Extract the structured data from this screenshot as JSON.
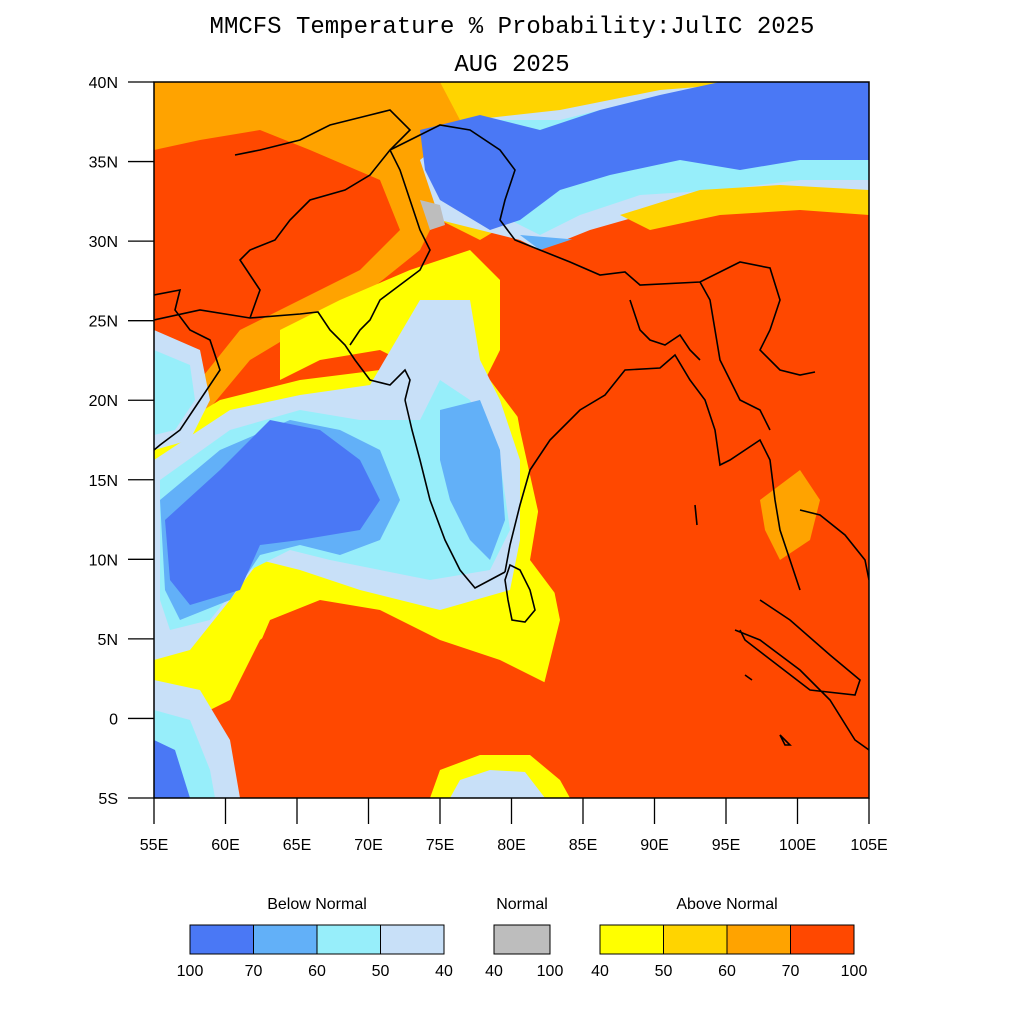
{
  "title": {
    "line1": "MMCFS Temperature % Probability:JulIC 2025",
    "line2": "AUG 2025"
  },
  "map": {
    "lon_range": [
      55,
      105
    ],
    "lat_range": [
      -5,
      40
    ],
    "lon_ticks": [
      "55E",
      "60E",
      "65E",
      "70E",
      "75E",
      "80E",
      "85E",
      "90E",
      "95E",
      "100E",
      "105E"
    ],
    "lat_ticks": [
      "40N",
      "35N",
      "30N",
      "25N",
      "20N",
      "15N",
      "10N",
      "5N",
      "0",
      "5S"
    ],
    "colors": {
      "below_100_70": "#4a78f5",
      "below_70_60": "#62b0f8",
      "below_60_50": "#97eefa",
      "below_50_40": "#c8e0f8",
      "normal": "#bdbdbd",
      "above_40_50": "#ffff00",
      "above_50_60": "#ffd400",
      "above_60_70": "#ffa300",
      "above_70_100": "#ff4800"
    }
  },
  "legend": {
    "below": {
      "title": "Below Normal",
      "ticks": [
        "100",
        "70",
        "60",
        "50",
        "40"
      ],
      "colors": [
        "#4a78f5",
        "#62b0f8",
        "#97eefa",
        "#c8e0f8"
      ]
    },
    "normal": {
      "title": "Normal",
      "ticks": [
        "40",
        "100"
      ],
      "colors": [
        "#bdbdbd"
      ]
    },
    "above": {
      "title": "Above Normal",
      "ticks": [
        "40",
        "50",
        "60",
        "70",
        "100"
      ],
      "colors": [
        "#ffff00",
        "#ffd400",
        "#ffa300",
        "#ff4800"
      ]
    }
  }
}
